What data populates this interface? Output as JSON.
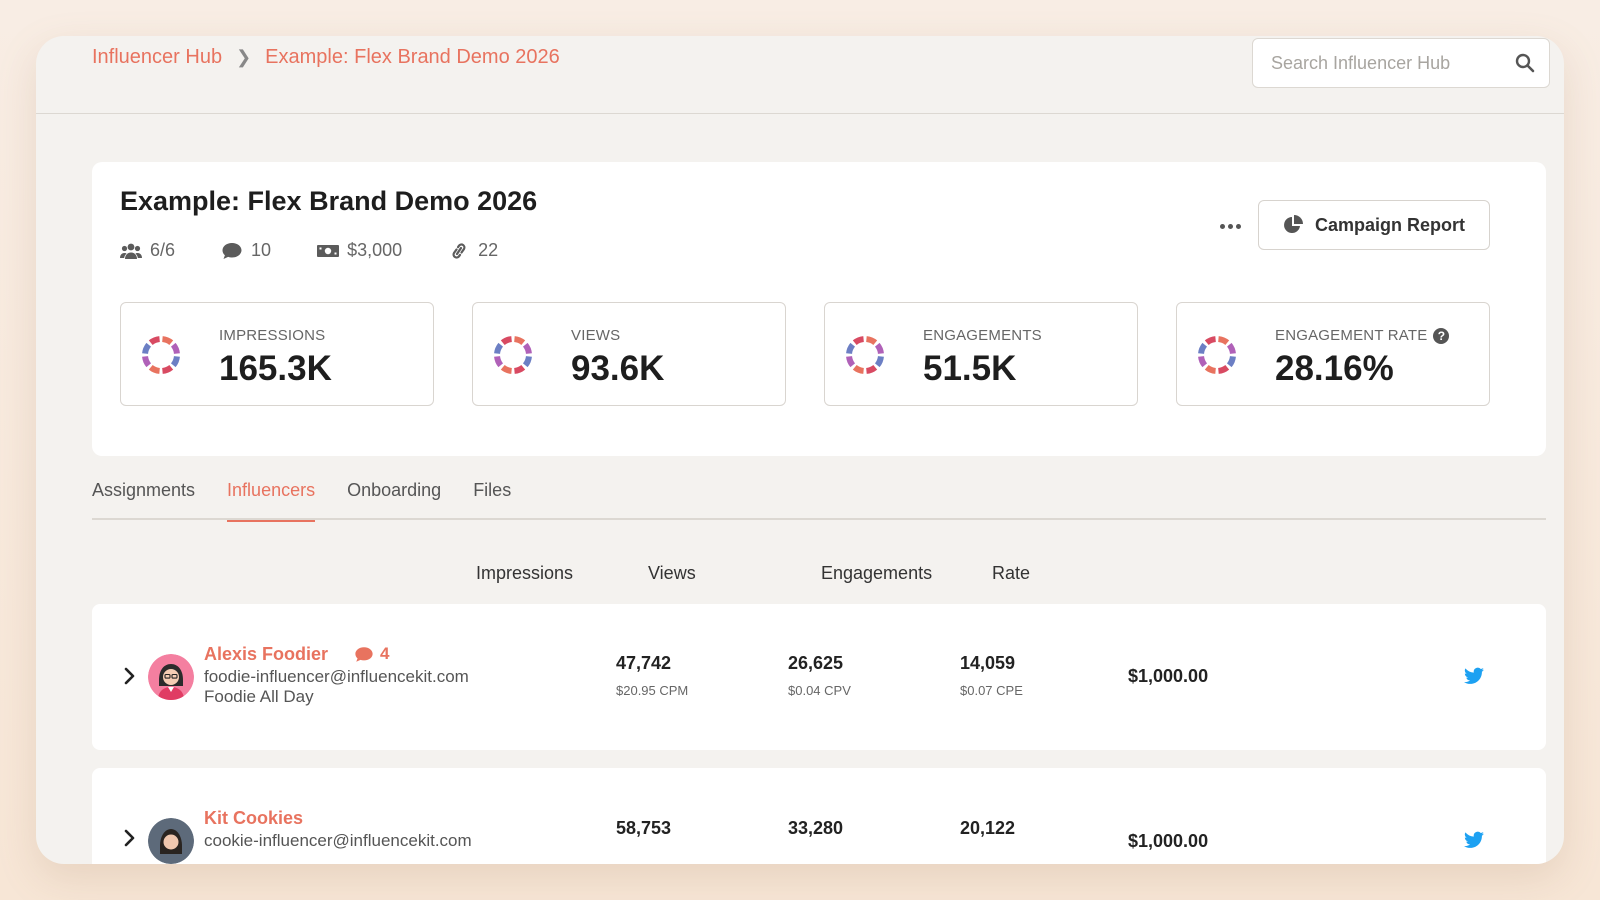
{
  "breadcrumb": {
    "root": "Influencer Hub",
    "current": "Example: Flex Brand Demo 2026"
  },
  "search": {
    "placeholder": "Search Influencer Hub"
  },
  "campaign": {
    "title": "Example: Flex Brand Demo 2026",
    "meta": {
      "influencers": "6/6",
      "comments": "10",
      "budget": "$3,000",
      "links": "22"
    },
    "report_button": "Campaign Report"
  },
  "stats": [
    {
      "label": "IMPRESSIONS",
      "value": "165.3K"
    },
    {
      "label": "VIEWS",
      "value": "93.6K"
    },
    {
      "label": "ENGAGEMENTS",
      "value": "51.5K"
    },
    {
      "label": "ENGAGEMENT RATE",
      "value": "28.16%"
    }
  ],
  "tabs": [
    "Assignments",
    "Influencers",
    "Onboarding",
    "Files"
  ],
  "active_tab": "Influencers",
  "columns": [
    "Impressions",
    "Views",
    "Engagements",
    "Rate"
  ],
  "influencers": [
    {
      "name": "Alexis Foodier",
      "comments": "4",
      "email": "foodie-influencer@influencekit.com",
      "tagline": "Foodie All Day",
      "impressions": "47,742",
      "cpm": "$20.95 CPM",
      "views": "26,625",
      "cpv": "$0.04 CPV",
      "engagements": "14,059",
      "cpe": "$0.07 CPE",
      "rate": "$1,000.00"
    },
    {
      "name": "Kit Cookies",
      "comments": "",
      "email": "cookie-influencer@influencekit.com",
      "tagline": "",
      "impressions": "58,753",
      "cpm": "",
      "views": "33,280",
      "cpv": "",
      "engagements": "20,122",
      "cpe": "",
      "rate": "$1,000.00"
    }
  ],
  "colors": {
    "accent": "#e8735f",
    "twitter": "#1da1f2"
  }
}
